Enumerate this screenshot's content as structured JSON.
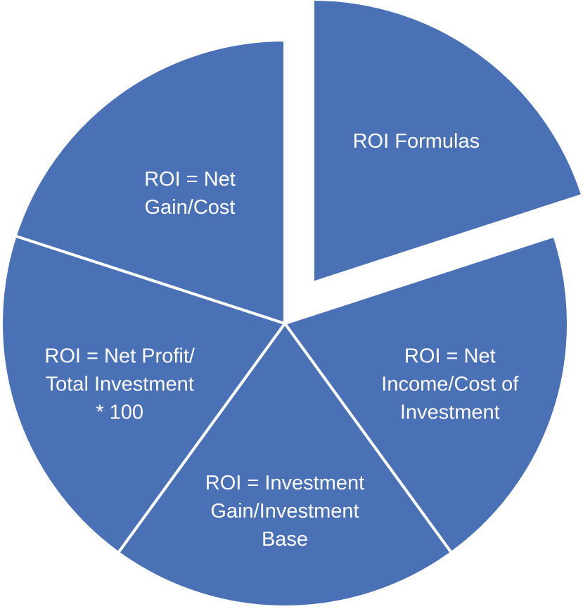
{
  "diagram": {
    "type": "exploded-pie",
    "segments": [
      {
        "id": "roi-formulas",
        "lines": [
          "ROI Formulas"
        ],
        "exploded": true
      },
      {
        "id": "net-income",
        "lines": [
          "ROI = Net",
          "Income/Cost of",
          "Investment"
        ],
        "exploded": false
      },
      {
        "id": "investment-gain",
        "lines": [
          "ROI = Investment",
          "Gain/Investment",
          "Base"
        ],
        "exploded": false
      },
      {
        "id": "net-profit",
        "lines": [
          "ROI = Net Profit/",
          "Total Investment",
          "* 100"
        ],
        "exploded": false
      },
      {
        "id": "net-gain",
        "lines": [
          "ROI = Net",
          "Gain/Cost"
        ],
        "exploded": false
      }
    ],
    "colors": {
      "fill": "#4a70b5",
      "stroke": "#ffffff"
    }
  }
}
